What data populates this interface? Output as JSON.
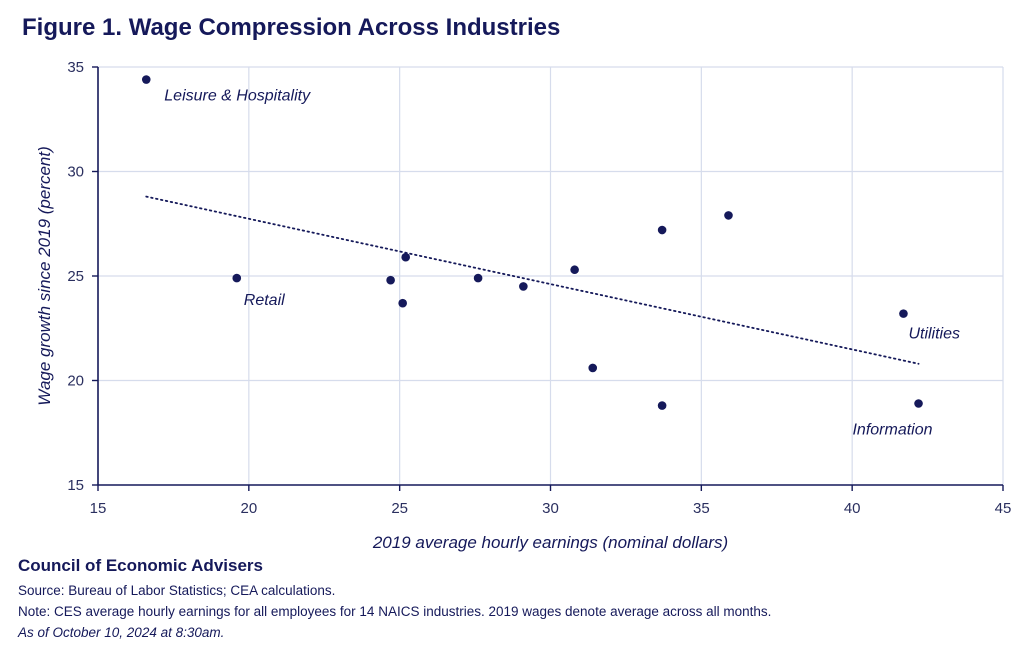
{
  "title": "Figure 1. Wage Compression Across Industries",
  "footer": {
    "org": "Council of Economic Advisers",
    "source": "Source: Bureau of Labor Statistics; CEA calculations.",
    "note": "Note: CES average hourly earnings for all employees for 14 NAICS industries. 2019 wages denote average across all months.",
    "asof": "As of October 10, 2024 at 8:30am."
  },
  "chart_data": {
    "type": "scatter",
    "xlabel": "2019 average hourly earnings (nominal dollars)",
    "ylabel": "Wage growth since 2019 (percent)",
    "xlim": [
      15,
      45
    ],
    "ylim": [
      15,
      35
    ],
    "xticks": [
      15,
      20,
      25,
      30,
      35,
      40,
      45
    ],
    "yticks": [
      15,
      20,
      25,
      30,
      35
    ],
    "grid": true,
    "marker_color": "#15195a",
    "points": [
      {
        "x": 16.6,
        "y": 34.4,
        "label": "Leisure & Hospitality"
      },
      {
        "x": 19.6,
        "y": 24.9,
        "label": "Retail"
      },
      {
        "x": 24.7,
        "y": 24.8,
        "label": ""
      },
      {
        "x": 25.2,
        "y": 25.9,
        "label": ""
      },
      {
        "x": 25.1,
        "y": 23.7,
        "label": ""
      },
      {
        "x": 27.6,
        "y": 24.9,
        "label": ""
      },
      {
        "x": 29.1,
        "y": 24.5,
        "label": ""
      },
      {
        "x": 30.8,
        "y": 25.3,
        "label": ""
      },
      {
        "x": 31.4,
        "y": 20.6,
        "label": ""
      },
      {
        "x": 33.7,
        "y": 27.2,
        "label": ""
      },
      {
        "x": 33.7,
        "y": 18.8,
        "label": ""
      },
      {
        "x": 35.9,
        "y": 27.9,
        "label": ""
      },
      {
        "x": 41.7,
        "y": 23.2,
        "label": "Utilities"
      },
      {
        "x": 42.2,
        "y": 18.9,
        "label": "Information"
      }
    ],
    "trendline": {
      "style": "dotted",
      "from": {
        "x": 16.6,
        "y": 28.8
      },
      "to": {
        "x": 42.2,
        "y": 20.8
      }
    }
  }
}
